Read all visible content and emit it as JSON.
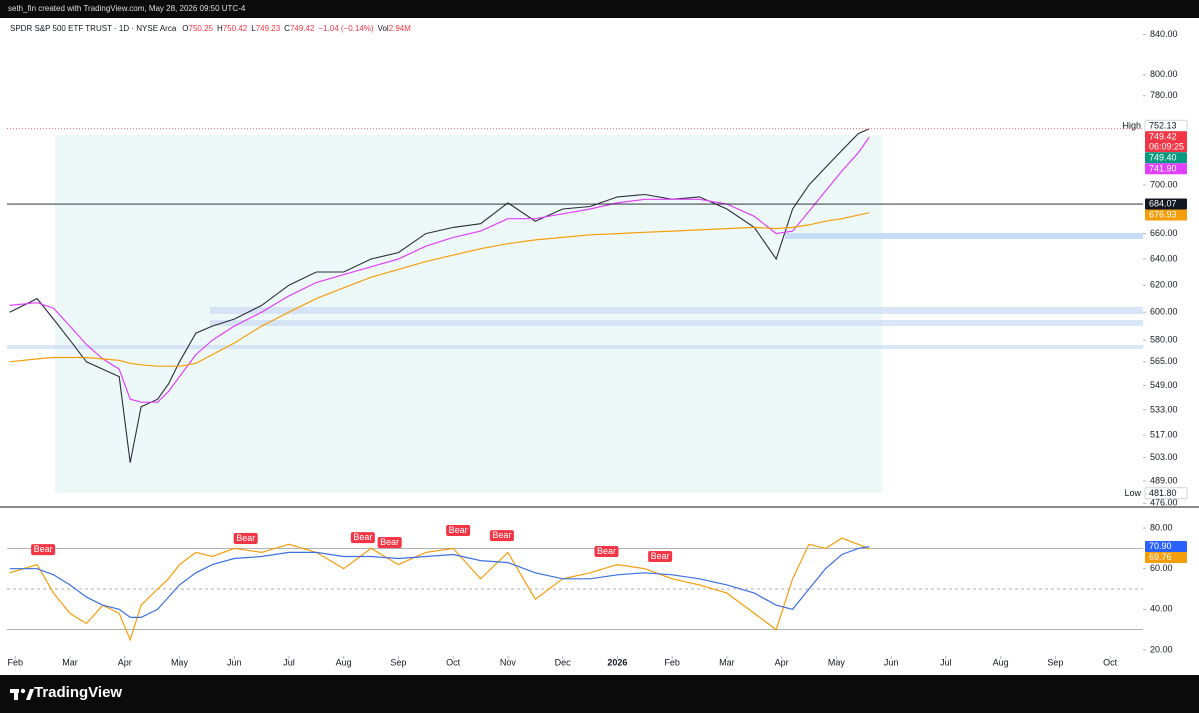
{
  "header": {
    "credit": "seth_fin created with TradingView.com, May 28, 2026 09:50 UTC-4"
  },
  "legend": {
    "symbol": "SPDR S&P 500 ETF TRUST · 1D · NYSE Arca",
    "fields": [
      {
        "key": "O",
        "value": "750.25"
      },
      {
        "key": "H",
        "value": "750.42"
      },
      {
        "key": "L",
        "value": "749.23"
      },
      {
        "key": "C",
        "value": "749.42"
      }
    ],
    "change": "−1.04 (−0.14%)",
    "volume": {
      "key": "Vol",
      "value": "2.94M"
    }
  },
  "footer": {
    "brand": "TradingView"
  },
  "chart_data": [
    {
      "type": "line",
      "log_scale": true,
      "x": [
        -0.1,
        0.4,
        0.7,
        1.0,
        1.3,
        1.6,
        1.9,
        2.1,
        2.3,
        2.6,
        2.8,
        3.0,
        3.3,
        3.6,
        4.0,
        4.5,
        5.0,
        5.5,
        6.0,
        6.5,
        7.0,
        7.5,
        8.0,
        8.5,
        9.0,
        9.5,
        10,
        10.5,
        11,
        11.5,
        12,
        12.5,
        13,
        13.5,
        13.9,
        14.2,
        14.5,
        14.8,
        15.1,
        15.4,
        15.6
      ],
      "xlim": [
        -0.15,
        20.6
      ],
      "ylim": [
        475,
        855
      ],
      "yticks": [
        {
          "value": 840,
          "label": "840.00"
        },
        {
          "value": 800,
          "label": "800.00"
        },
        {
          "value": 780,
          "label": "780.00"
        },
        {
          "value": 700,
          "label": "700.00"
        },
        {
          "value": 660,
          "label": "660.00"
        },
        {
          "value": 640,
          "label": "640.00"
        },
        {
          "value": 620,
          "label": "620.00"
        },
        {
          "value": 600,
          "label": "600.00"
        },
        {
          "value": 580,
          "label": "580.00"
        },
        {
          "value": 565,
          "label": "565.00"
        },
        {
          "value": 549,
          "label": "549.00"
        },
        {
          "value": 533,
          "label": "533.00"
        },
        {
          "value": 517,
          "label": "517.00"
        },
        {
          "value": 503,
          "label": "503.00"
        },
        {
          "value": 489,
          "label": "489.00"
        },
        {
          "value": 476,
          "label": "476.00"
        }
      ],
      "series": [
        {
          "color": "#2a2e39",
          "values": [
            600,
            610,
            595,
            580,
            565,
            560,
            555,
            500,
            535,
            540,
            550,
            565,
            585,
            590,
            595,
            605,
            620,
            630,
            630,
            640,
            645,
            660,
            665,
            668,
            685,
            670,
            680,
            682,
            690,
            692,
            688,
            690,
            680,
            665,
            640,
            680,
            700,
            715,
            730,
            745,
            749.42
          ],
          "last_label": "749.42",
          "label_color": "#f23645",
          "countdown": "06:09:25",
          "level_line": "dotted"
        },
        {
          "color": "#e040fb",
          "values": [
            605,
            607,
            603,
            590,
            577,
            567,
            560,
            540,
            538,
            538,
            545,
            555,
            570,
            580,
            590,
            600,
            612,
            622,
            628,
            634,
            640,
            650,
            657,
            662,
            672,
            672,
            676,
            680,
            685,
            688,
            688,
            688,
            684,
            674,
            660,
            662,
            678,
            695,
            712,
            728,
            741.9
          ],
          "last_label": "741.90",
          "label_color": "#e040fb"
        },
        {
          "color": "#f59e0b",
          "values": [
            565,
            567,
            568,
            568,
            568,
            567,
            566,
            564,
            563,
            562,
            562,
            562,
            564,
            570,
            578,
            590,
            600,
            610,
            618,
            626,
            632,
            638,
            643,
            648,
            652,
            655,
            657,
            659,
            660,
            661,
            662,
            663,
            664,
            665,
            664,
            665,
            667,
            670,
            672,
            675,
            676.93
          ],
          "last_label": "676.93",
          "label_color": "#f59e0b"
        }
      ],
      "price_labels": [
        {
          "tag": "High",
          "value": 752.13,
          "label": "752.13",
          "color": "#ffffff",
          "text_color": "#131722"
        },
        {
          "value": 749.4,
          "label": "749.40",
          "color": "#089981",
          "text_color": "#ffffff"
        },
        {
          "value": 684.07,
          "label": "684.07",
          "color": "#131722",
          "text_color": "#ffffff",
          "line": "solid"
        },
        {
          "tag": "Low",
          "value": 481.8,
          "label": "481.80",
          "color": "#ffffff",
          "text_color": "#131722"
        }
      ]
    },
    {
      "type": "line",
      "log_scale": false,
      "x": [
        -0.1,
        0.4,
        0.7,
        1.0,
        1.3,
        1.6,
        1.9,
        2.1,
        2.3,
        2.6,
        2.8,
        3.0,
        3.3,
        3.6,
        4.0,
        4.5,
        5.0,
        5.5,
        6.0,
        6.5,
        7.0,
        7.5,
        8.0,
        8.5,
        9.0,
        9.5,
        10,
        10.5,
        11,
        11.5,
        12,
        12.5,
        13,
        13.5,
        13.9,
        14.2,
        14.5,
        14.8,
        15.1,
        15.4,
        15.6
      ],
      "xlim": [
        -0.15,
        20.6
      ],
      "ylim": [
        17.5,
        88.9
      ],
      "yticks": [
        {
          "value": 80,
          "label": "80.00"
        },
        {
          "value": 60,
          "label": "60.00"
        },
        {
          "value": 40,
          "label": "40.00"
        },
        {
          "value": 20,
          "label": "20.00"
        }
      ],
      "levels": [
        70,
        50,
        30
      ],
      "level_styles": [
        "solid",
        "dashed",
        "solid"
      ],
      "xticks": [
        {
          "value": 0,
          "label": "Feb"
        },
        {
          "value": 1,
          "label": "Mar"
        },
        {
          "value": 2,
          "label": "Apr"
        },
        {
          "value": 3,
          "label": "May"
        },
        {
          "value": 4,
          "label": "Jun"
        },
        {
          "value": 5,
          "label": "Jul"
        },
        {
          "value": 6,
          "label": "Aug"
        },
        {
          "value": 7,
          "label": "Sep"
        },
        {
          "value": 8,
          "label": "Oct"
        },
        {
          "value": 9,
          "label": "Nov"
        },
        {
          "value": 10,
          "label": "Dec"
        },
        {
          "value": 11,
          "label": "2026"
        },
        {
          "value": 12,
          "label": "Feb"
        },
        {
          "value": 13,
          "label": "Mar"
        },
        {
          "value": 14,
          "label": "Apr"
        },
        {
          "value": 15,
          "label": "May"
        },
        {
          "value": 16,
          "label": "Jun"
        },
        {
          "value": 17,
          "label": "Jul"
        },
        {
          "value": 18,
          "label": "Aug"
        },
        {
          "value": 19,
          "label": "Sep"
        },
        {
          "value": 20,
          "label": "Oct"
        }
      ],
      "series": [
        {
          "color": "#f59e0b",
          "values": [
            58,
            62,
            48,
            38,
            33,
            42,
            38,
            25,
            42,
            50,
            55,
            62,
            68,
            66,
            70,
            68,
            72,
            68,
            60,
            70,
            62,
            68,
            70,
            55,
            68,
            45,
            55,
            58,
            62,
            60,
            55,
            52,
            48,
            38,
            30,
            55,
            72,
            70,
            75,
            72,
            69.76
          ],
          "last_label": "69.76",
          "label_color": "#f59e0b"
        },
        {
          "color": "#3d6fe0",
          "values": [
            60,
            60,
            57,
            52,
            46,
            42,
            40,
            36,
            36,
            40,
            46,
            52,
            58,
            62,
            65,
            66,
            68,
            68,
            66,
            66,
            65,
            66,
            67,
            64,
            63,
            58,
            55,
            55,
            57,
            58,
            57,
            55,
            52,
            48,
            42,
            40,
            50,
            60,
            67,
            70,
            70.9
          ],
          "last_label": "70.90",
          "label_color": "#2962ff"
        }
      ],
      "annotations": [
        {
          "label": "Bear",
          "x": 0.51,
          "y": 65.2
        },
        {
          "label": "Bear",
          "x": 4.21,
          "y": 70.7
        },
        {
          "label": "Bear",
          "x": 6.35,
          "y": 71.1
        },
        {
          "label": "Bear",
          "x": 6.84,
          "y": 68.7
        },
        {
          "label": "Bear",
          "x": 8.09,
          "y": 74.6
        },
        {
          "label": "Bear",
          "x": 8.89,
          "y": 72.1
        },
        {
          "label": "Bear",
          "x": 10.8,
          "y": 64.3
        },
        {
          "label": "Bear",
          "x": 11.78,
          "y": 61.8
        }
      ]
    }
  ]
}
